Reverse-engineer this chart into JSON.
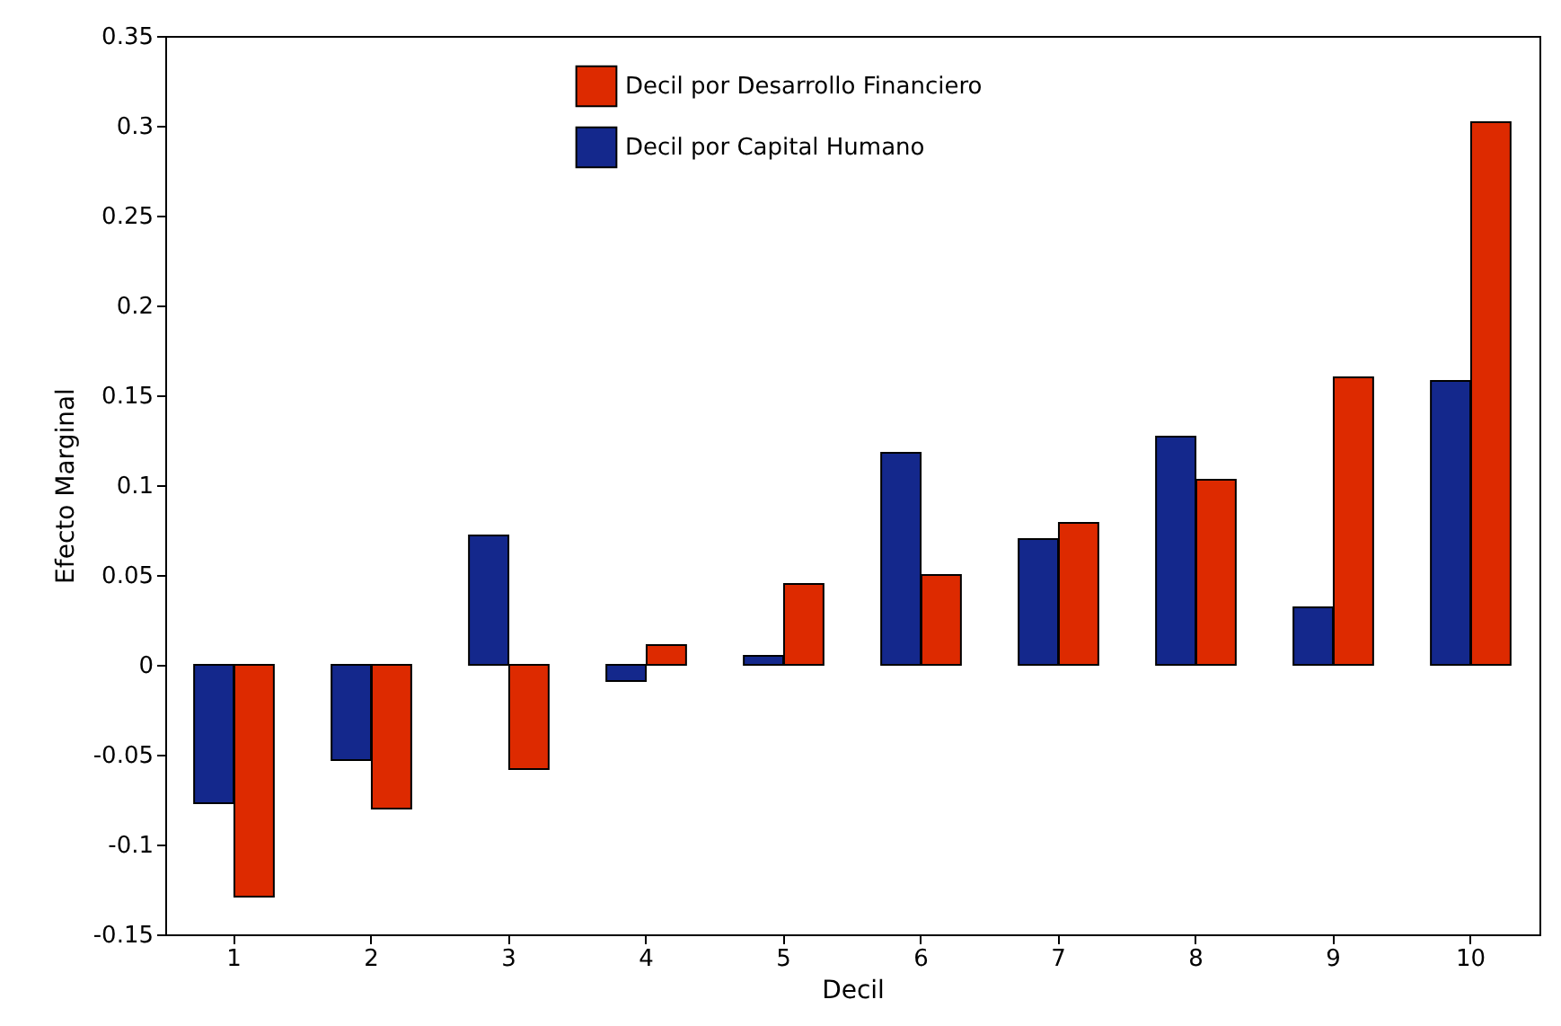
{
  "chart_data": {
    "type": "bar",
    "xlabel": "Decil",
    "ylabel": "Efecto Marginal",
    "categories": [
      "1",
      "2",
      "3",
      "4",
      "5",
      "6",
      "7",
      "8",
      "9",
      "10"
    ],
    "series": [
      {
        "name": "Decil por Desarrollo Financiero",
        "color": "#dd2a00",
        "values": [
          -0.129,
          -0.08,
          -0.058,
          0.011,
          0.045,
          0.05,
          0.079,
          0.103,
          0.16,
          0.302
        ]
      },
      {
        "name": "Decil por Capital Humano",
        "color": "#14288c",
        "values": [
          -0.077,
          -0.053,
          0.072,
          -0.009,
          0.005,
          0.118,
          0.07,
          0.127,
          0.032,
          0.158
        ]
      }
    ],
    "ylim": [
      -0.15,
      0.35
    ],
    "yticks": [
      -0.15,
      -0.1,
      -0.05,
      0,
      0.05,
      0.1,
      0.15,
      0.2,
      0.25,
      0.3,
      0.35
    ],
    "grid": false,
    "legend": "top"
  }
}
